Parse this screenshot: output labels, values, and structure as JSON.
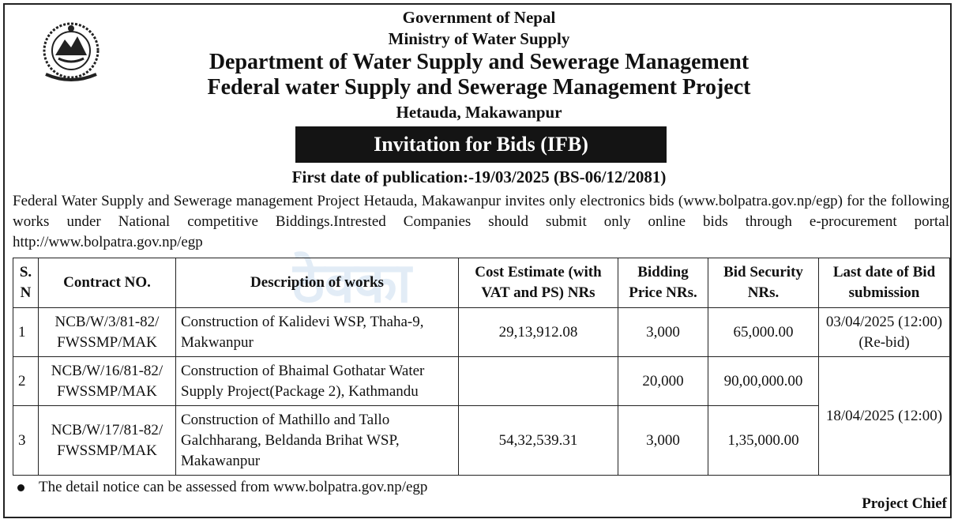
{
  "header": {
    "line1": "Government of Nepal",
    "line2": "Ministry of Water Supply",
    "line3": "Department of Water Supply and Sewerage Management",
    "line4": "Federal water Supply and Sewerage Management Project",
    "line5": "Hetauda, Makawanpur"
  },
  "notice": {
    "title": "Invitation for Bids (IFB)",
    "publication_date": "First date of publication:-19/03/2025 (BS-06/12/2081)",
    "intro": "Federal Water Supply and Sewerage management Project Hetauda, Makawanpur invites only electronics bids (www.bolpatra.gov.np/egp) for the following works under National competitive Biddings.Intrested Companies should submit only online bids through e-procurement portal http://www.bolpatra.gov.np/egp"
  },
  "watermark": "ठेक्का",
  "table": {
    "headers": {
      "sn": "S. N",
      "contract": "Contract NO.",
      "description": "Description of works",
      "cost": "Cost Estimate (with VAT and PS) NRs",
      "price": "Bidding Price NRs.",
      "security": "Bid Security NRs.",
      "last_date": "Last date of Bid submission"
    },
    "rows": [
      {
        "sn": "1",
        "contract": "NCB/W/3/81-82/ FWSSMP/MAK",
        "description": "Construction of Kalidevi WSP, Thaha-9, Makwanpur",
        "cost": "29,13,912.08",
        "price": "3,000",
        "security": "65,000.00",
        "last_date": "03/04/2025 (12:00)(Re-bid)"
      },
      {
        "sn": "2",
        "contract": "NCB/W/16/81-82/ FWSSMP/MAK",
        "description": "Construction of Bhaimal Gothatar Water Supply Project(Package 2), Kathmandu",
        "cost": "",
        "price": "20,000",
        "security": "90,00,000.00",
        "last_date": "18/04/2025 (12:00)"
      },
      {
        "sn": "3",
        "contract": "NCB/W/17/81-82/ FWSSMP/MAK",
        "description": "Construction of Mathillo and Tallo Galchharang, Beldanda Brihat WSP, Makawanpur",
        "cost": "54,32,539.31",
        "price": "3,000",
        "security": "1,35,000.00"
      }
    ]
  },
  "footer": {
    "note": "The detail notice can be assessed from www.bolpatra.gov.np/egp",
    "signoff": "Project Chief"
  }
}
